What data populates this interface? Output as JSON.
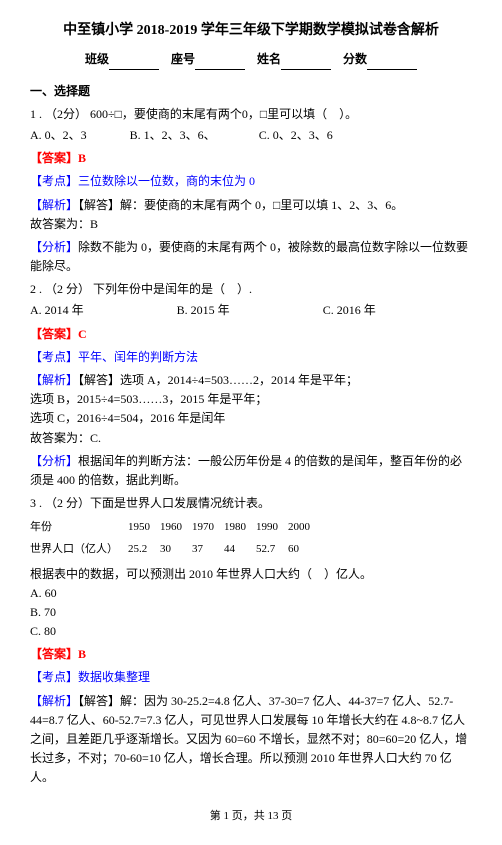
{
  "title": "中至镇小学 2018-2019 学年三年级下学期数学模拟试卷含解析",
  "header": {
    "class_label": "班级",
    "seat_label": "座号",
    "name_label": "姓名",
    "score_label": "分数"
  },
  "section1_title": "一、选择题",
  "q1": {
    "text": "1 . （2分） 600÷□，要使商的末尾有两个0，□里可以填（　）。",
    "optA": "A. 0、2、3",
    "optB": "B. 1、2、3、6、",
    "optC": "C. 0、2、3、6",
    "answer": "【答案】B",
    "topic": "【考点】三位数除以一位数，商的末位为 0",
    "analysis_label": "【解析】",
    "analysis_text": "【解答】解：要使商的末尾有两个 0，□里可以填 1、2、3、6。",
    "conclusion": "故答案为：B",
    "analysis2_label": "【分析】",
    "analysis2_text": "除数不能为 0，要使商的末尾有两个 0，被除数的最高位数字除以一位数要能除尽。"
  },
  "q2": {
    "text": "2 . （2 分） 下列年份中是闰年的是（　）.",
    "optA": "A. 2014 年",
    "optB": "B. 2015 年",
    "optC": "C. 2016 年",
    "answer": "【答案】C",
    "topic": "【考点】平年、闰年的判断方法",
    "analysis_label": "【解析】",
    "analysis_text": "【解答】选项 A，2014÷4=503……2，2014 年是平年；",
    "line2": "选项 B，2015÷4=503……3，2015 年是平年；",
    "line3": "选项 C，2016÷4=504，2016 年是闰年",
    "conclusion": "故答案为：C.",
    "analysis2_label": "【分析】",
    "analysis2_text": "根据闰年的判断方法：一般公历年份是 4 的倍数的是闰年，整百年份的必须是 400 的倍数，据此判断。"
  },
  "q3": {
    "text": "3 . （2 分）下面是世界人口发展情况统计表。",
    "table": {
      "row1_label": "年份",
      "row1_vals": [
        "1950",
        "1960",
        "1970",
        "1980",
        "1990",
        "2000"
      ],
      "row2_label": "世界人口（亿人）",
      "row2_vals": [
        "25.2",
        "30",
        "37",
        "44",
        "52.7",
        "60"
      ]
    },
    "text2": "根据表中的数据，可以预测出 2010 年世界人口大约（　）亿人。",
    "optA": "A. 60",
    "optB": "B. 70",
    "optC": "C. 80",
    "answer": "【答案】B",
    "topic": "【考点】数据收集整理",
    "analysis_label": "【解析】",
    "analysis_text": "【解答】解：因为 30-25.2=4.8 亿人、37-30=7 亿人、44-37=7 亿人、52.7-44=8.7 亿人、60-52.7=7.3 亿人，可见世界人口发展每 10 年增长大约在 4.8~8.7 亿人之间，且差距几乎逐渐增长。又因为 60=60 不增长，显然不对；80=60=20 亿人，增长过多，不对；70-60=10 亿人，增长合理。所以预测 2010 年世界人口大约 70 亿人。"
  },
  "footer": "第 1 页，共 13 页"
}
